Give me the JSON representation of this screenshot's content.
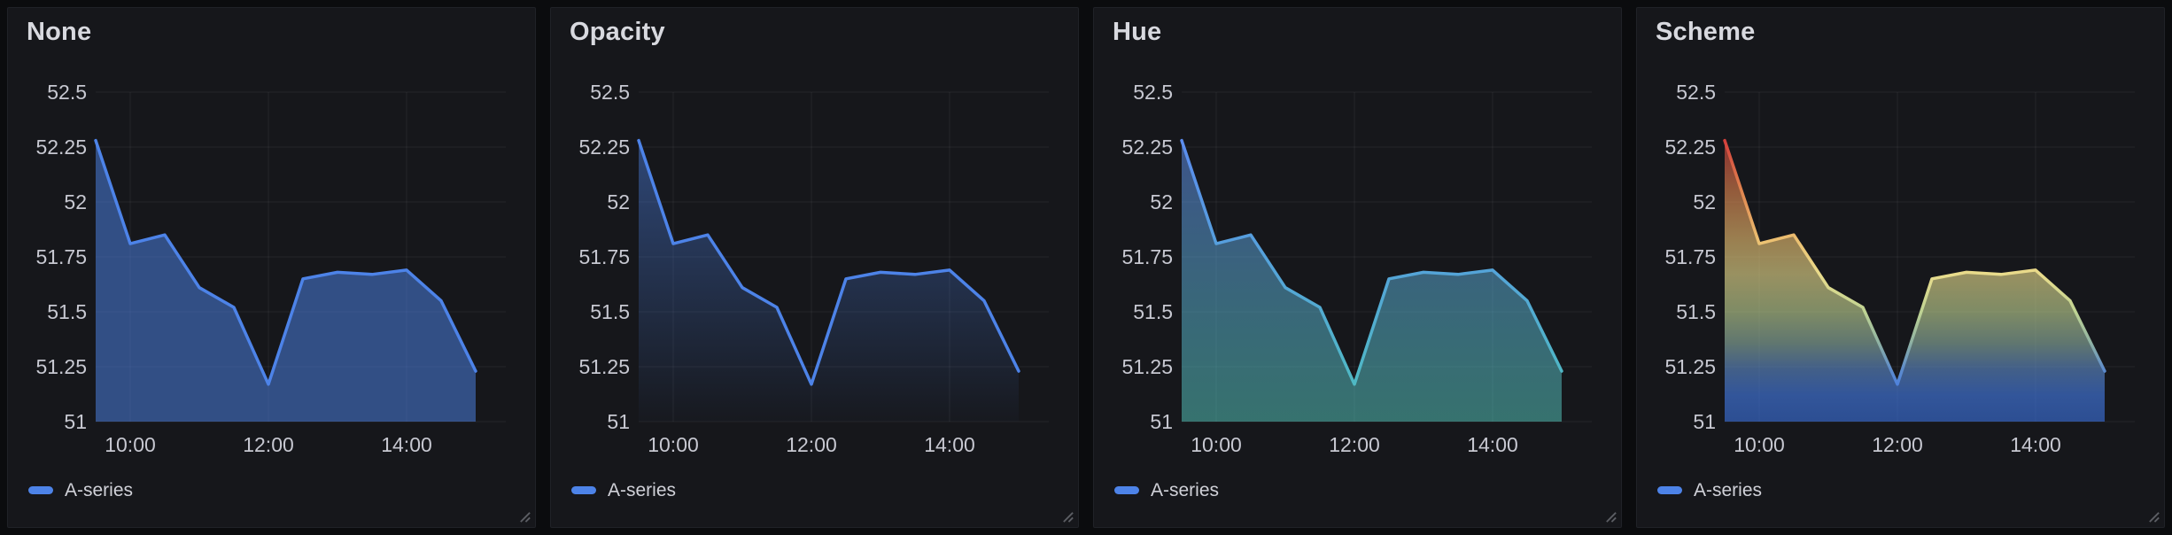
{
  "app": "grafana-timeseries-gradient-panels",
  "style": {
    "page_bg": "#0b0c0e",
    "panel_bg": "#16171b",
    "panel_border": "#202227",
    "grid_color": "rgba(204,204,220,0.08)",
    "tick_color": "#c7c8d1",
    "title_color": "#d8d9df",
    "series_blue": "#4d83e8"
  },
  "legend": {
    "label": "A-series"
  },
  "gradients": {
    "none": {
      "fill": "rgba(77,131,232,0.52)"
    },
    "opacity": {
      "fill_top": "rgba(77,131,232,0.45)",
      "fill_bottom": "rgba(77,131,232,0.02)"
    },
    "hue": {
      "fill_top": "rgba(96,140,240,0.52)",
      "fill_bottom": "rgba(94,225,212,0.45)",
      "stroke_top": "#5b8cef",
      "stroke_bottom": "#4fb9c4"
    },
    "scheme": {
      "fill_opacity": 0.62,
      "stops": [
        [
          52.5,
          "#c93035"
        ],
        [
          52.28,
          "#d4403c"
        ],
        [
          52.05,
          "#e0854f"
        ],
        [
          51.82,
          "#ecc172"
        ],
        [
          51.67,
          "#e9dc8c"
        ],
        [
          51.5,
          "#bfd393"
        ],
        [
          51.36,
          "#8fb2a3"
        ],
        [
          51.24,
          "#5e8ccb"
        ],
        [
          51.12,
          "#447ce8"
        ],
        [
          51.0,
          "#3a70dc"
        ]
      ]
    }
  },
  "chart_data": [
    {
      "type": "area",
      "title": "None",
      "gradient_mode": "none",
      "series_name": "A-series",
      "line_color": "#4d83e8",
      "x": [
        "09:30",
        "10:00",
        "10:30",
        "11:00",
        "11:30",
        "12:00",
        "12:30",
        "13:00",
        "13:30",
        "14:00",
        "14:30",
        "15:00"
      ],
      "values": [
        52.28,
        51.81,
        51.85,
        51.61,
        51.52,
        51.17,
        51.65,
        51.68,
        51.67,
        51.69,
        51.55,
        51.23
      ],
      "x_ticks": [
        "10:00",
        "12:00",
        "14:00"
      ],
      "y_ticks": [
        "52.5",
        "52.25",
        "52",
        "51.75",
        "51.5",
        "51.25",
        "51"
      ],
      "ylim": [
        51,
        52.5
      ],
      "x_range": [
        "09:30",
        "15:30"
      ],
      "grid": true,
      "legend_position": "bottom-left"
    },
    {
      "type": "area",
      "title": "Opacity",
      "gradient_mode": "opacity",
      "series_name": "A-series",
      "line_color": "#4d83e8",
      "x": [
        "09:30",
        "10:00",
        "10:30",
        "11:00",
        "11:30",
        "12:00",
        "12:30",
        "13:00",
        "13:30",
        "14:00",
        "14:30",
        "15:00"
      ],
      "values": [
        52.28,
        51.81,
        51.85,
        51.61,
        51.52,
        51.17,
        51.65,
        51.68,
        51.67,
        51.69,
        51.55,
        51.23
      ],
      "x_ticks": [
        "10:00",
        "12:00",
        "14:00"
      ],
      "y_ticks": [
        "52.5",
        "52.25",
        "52",
        "51.75",
        "51.5",
        "51.25",
        "51"
      ],
      "ylim": [
        51,
        52.5
      ],
      "x_range": [
        "09:30",
        "15:30"
      ],
      "grid": true,
      "legend_position": "bottom-left"
    },
    {
      "type": "area",
      "title": "Hue",
      "gradient_mode": "hue",
      "series_name": "A-series",
      "line_color": "#4d83e8",
      "x": [
        "09:30",
        "10:00",
        "10:30",
        "11:00",
        "11:30",
        "12:00",
        "12:30",
        "13:00",
        "13:30",
        "14:00",
        "14:30",
        "15:00"
      ],
      "values": [
        52.28,
        51.81,
        51.85,
        51.61,
        51.52,
        51.17,
        51.65,
        51.68,
        51.67,
        51.69,
        51.55,
        51.23
      ],
      "x_ticks": [
        "10:00",
        "12:00",
        "14:00"
      ],
      "y_ticks": [
        "52.5",
        "52.25",
        "52",
        "51.75",
        "51.5",
        "51.25",
        "51"
      ],
      "ylim": [
        51,
        52.5
      ],
      "x_range": [
        "09:30",
        "15:30"
      ],
      "grid": true,
      "legend_position": "bottom-left"
    },
    {
      "type": "area",
      "title": "Scheme",
      "gradient_mode": "scheme",
      "series_name": "A-series",
      "line_color": "#4d83e8",
      "x": [
        "09:30",
        "10:00",
        "10:30",
        "11:00",
        "11:30",
        "12:00",
        "12:30",
        "13:00",
        "13:30",
        "14:00",
        "14:30",
        "15:00"
      ],
      "values": [
        52.28,
        51.81,
        51.85,
        51.61,
        51.52,
        51.17,
        51.65,
        51.68,
        51.67,
        51.69,
        51.55,
        51.23
      ],
      "x_ticks": [
        "10:00",
        "12:00",
        "14:00"
      ],
      "y_ticks": [
        "52.5",
        "52.25",
        "52",
        "51.75",
        "51.5",
        "51.25",
        "51"
      ],
      "ylim": [
        51,
        52.5
      ],
      "x_range": [
        "09:30",
        "15:30"
      ],
      "grid": true,
      "legend_position": "bottom-left"
    }
  ]
}
